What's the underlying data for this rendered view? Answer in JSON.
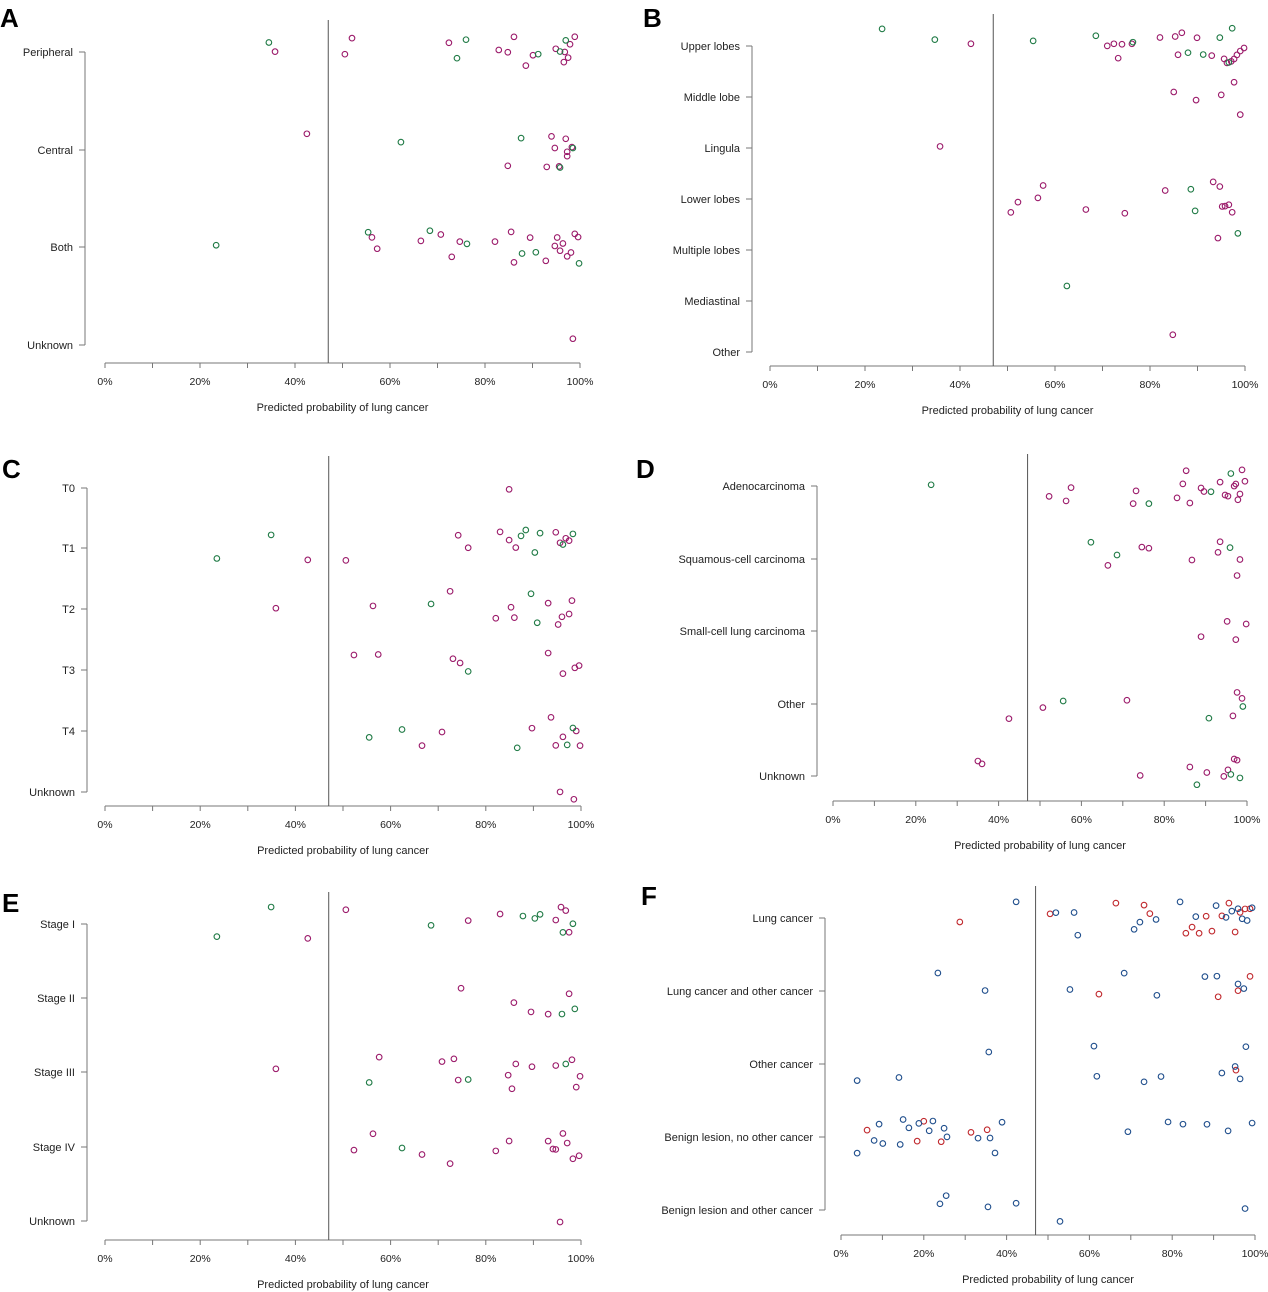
{
  "colors": {
    "magenta": "#9b1a6a",
    "green": "#1f7a45",
    "red": "#c0282d",
    "blue": "#1f4e8c",
    "threshold": "#555555",
    "axis": "#777777"
  },
  "chart_data": [
    {
      "panel": "A",
      "type": "scatter",
      "xlabel": "Predicted probability of lung cancer",
      "xlim": [
        0,
        100
      ],
      "x_tick_labels": [
        "0%",
        "20%",
        "40%",
        "60%",
        "80%",
        "100%"
      ],
      "threshold": 47,
      "categories": [
        {
          "label": "Peripheral",
          "magenta": [
            35.8,
            50.5,
            52,
            72.4,
            82.9,
            84.8,
            86.1,
            88.6,
            90.1,
            94.9,
            97.9,
            96.6,
            97.5,
            98.9,
            96.8
          ],
          "green": [
            34.5,
            74.1,
            76,
            91.2,
            95.8,
            97
          ]
        },
        {
          "label": "Central",
          "magenta": [
            42.5,
            84.8,
            93,
            94,
            94.7,
            95.6,
            97,
            98.3,
            97.3,
            97.3
          ],
          "green": [
            62.3,
            87.6,
            95.8,
            98.5
          ]
        },
        {
          "label": "Both",
          "magenta": [
            56.2,
            57.3,
            66.5,
            70.7,
            73,
            74.7,
            82.1,
            85.5,
            86.1,
            89.5,
            92.8,
            94.7,
            95.2,
            95.8,
            96.4,
            97.3,
            98.1,
            98.9,
            99.6
          ],
          "green": [
            23.4,
            55.4,
            68.4,
            76.2,
            87.8,
            90.7,
            99.8
          ]
        },
        {
          "label": "Unknown",
          "magenta": [
            98.5
          ],
          "green": []
        }
      ]
    },
    {
      "panel": "B",
      "type": "scatter",
      "xlabel": "Predicted probability of lung cancer",
      "xlim": [
        0,
        100
      ],
      "x_tick_labels": [
        "0%",
        "20%",
        "40%",
        "60%",
        "80%",
        "100%"
      ],
      "threshold": 47,
      "categories": [
        {
          "label": "Upper lobes",
          "magenta": [
            42.3,
            71,
            72.4,
            73.3,
            74.1,
            76.2,
            82.1,
            85.3,
            85.9,
            86.7,
            89.9,
            93,
            95.6,
            96.2,
            97.1,
            97.7,
            98.3,
            99,
            99.8
          ],
          "green": [
            23.6,
            34.7,
            55.4,
            68.6,
            76.4,
            88,
            91.2,
            94.7,
            96.6,
            97.3
          ]
        },
        {
          "label": "Middle lobe",
          "magenta": [
            85,
            89.7,
            95,
            97.7,
            99
          ],
          "green": []
        },
        {
          "label": "Lingula",
          "magenta": [
            35.8
          ],
          "green": []
        },
        {
          "label": "Lower lobes",
          "magenta": [
            50.7,
            52.2,
            56.4,
            57.5,
            66.5,
            74.7,
            83.2,
            93.3,
            94.7,
            95.2,
            95.8,
            96.6,
            97.3
          ],
          "green": [
            88.6,
            89.5
          ]
        },
        {
          "label": "Multiple lobes",
          "magenta": [
            94.3
          ],
          "green": [
            98.5
          ]
        },
        {
          "label": "Mediastinal",
          "magenta": [],
          "green": [
            62.5
          ]
        },
        {
          "label": "Other",
          "magenta": [
            84.8
          ],
          "green": []
        }
      ]
    },
    {
      "panel": "C",
      "type": "scatter",
      "xlabel": "Predicted probability of lung cancer",
      "xlim": [
        0,
        100
      ],
      "x_tick_labels": [
        "0%",
        "20%",
        "40%",
        "60%",
        "80%",
        "100%"
      ],
      "threshold": 47,
      "categories": [
        {
          "label": "T0",
          "magenta": [
            84.9
          ],
          "green": []
        },
        {
          "label": "T1",
          "magenta": [
            42.6,
            50.6,
            74.2,
            76.3,
            83,
            84.9,
            86.3,
            94.7,
            95.6,
            96.8,
            97.5
          ],
          "green": [
            23.5,
            34.9,
            87.4,
            88.4,
            90.3,
            91.4,
            96.2,
            98.3
          ]
        },
        {
          "label": "T2",
          "magenta": [
            35.9,
            56.3,
            72.5,
            82.1,
            85.3,
            86,
            93.1,
            95.2,
            96,
            97.5,
            98.1
          ],
          "green": [
            68.5,
            89.5,
            90.8
          ]
        },
        {
          "label": "T3",
          "magenta": [
            52.3,
            57.4,
            73.1,
            74.6,
            93.1,
            96.2,
            98.7,
            99.6
          ],
          "green": [
            76.3
          ]
        },
        {
          "label": "T4",
          "magenta": [
            66.6,
            70.8,
            89.7,
            93.7,
            94.7,
            96.2,
            99,
            99.8
          ],
          "green": [
            55.5,
            62.4,
            86.6,
            97.1,
            98.3
          ]
        },
        {
          "label": "Unknown",
          "magenta": [
            95.6,
            98.5
          ],
          "green": []
        }
      ]
    },
    {
      "panel": "D",
      "type": "scatter",
      "xlabel": "Predicted probability of lung cancer",
      "xlim": [
        0,
        100
      ],
      "x_tick_labels": [
        "0%",
        "20%",
        "40%",
        "60%",
        "80%",
        "100%"
      ],
      "threshold": 47,
      "categories": [
        {
          "label": "Adenocarcinoma",
          "magenta": [
            52.2,
            56.3,
            57.5,
            72.5,
            73.2,
            83.1,
            84.5,
            85.3,
            86.2,
            88.9,
            89.6,
            93.5,
            94.7,
            95.4,
            96.9,
            97.3,
            97.8,
            98.3,
            98.8,
            99.5
          ],
          "green": [
            23.7,
            76.3,
            91.3,
            96.1
          ]
        },
        {
          "label": "Squamous-cell carcinoma",
          "magenta": [
            66.4,
            74.6,
            76.3,
            86.7,
            93,
            93.5,
            97.6,
            98.3
          ],
          "green": [
            62.3,
            68.6,
            95.9
          ]
        },
        {
          "label": "Small-cell lung carcinoma",
          "magenta": [
            88.9,
            95.2,
            97.3,
            99.8
          ],
          "green": []
        },
        {
          "label": "Other",
          "magenta": [
            42.5,
            50.7,
            71,
            96.6,
            97.6,
            98.8
          ],
          "green": [
            55.6,
            90.8,
            99
          ]
        },
        {
          "label": "Unknown",
          "magenta": [
            35,
            36,
            74.2,
            86.2,
            90.3,
            94.4,
            95.4,
            96.9,
            97.6
          ],
          "green": [
            87.9,
            96.1,
            98.3
          ]
        }
      ]
    },
    {
      "panel": "E",
      "type": "scatter",
      "xlabel": "Predicted probability of lung cancer",
      "xlim": [
        0,
        100
      ],
      "x_tick_labels": [
        "0%",
        "20%",
        "40%",
        "60%",
        "80%",
        "100%"
      ],
      "threshold": 47,
      "categories": [
        {
          "label": "Stage I",
          "magenta": [
            42.6,
            50.6,
            76.3,
            83,
            94.7,
            95.8,
            96.8,
            97.5
          ],
          "green": [
            23.5,
            34.9,
            68.5,
            87.8,
            90.3,
            91.4,
            96.2,
            98.3
          ]
        },
        {
          "label": "Stage II",
          "magenta": [
            74.8,
            85.9,
            89.5,
            93.1,
            97.5
          ],
          "green": [
            96,
            98.7
          ]
        },
        {
          "label": "Stage III",
          "magenta": [
            35.9,
            57.6,
            70.8,
            73.3,
            74.2,
            84.7,
            85.5,
            86.3,
            89.7,
            94.7,
            98.1,
            99,
            99.8
          ],
          "green": [
            55.5,
            76.3,
            96.8
          ]
        },
        {
          "label": "Stage IV",
          "magenta": [
            52.3,
            56.3,
            66.6,
            72.5,
            82.1,
            84.9,
            93.1,
            94.1,
            94.7,
            96.2,
            97.1,
            98.3,
            99.6
          ],
          "green": [
            62.4
          ]
        },
        {
          "label": "Unknown",
          "magenta": [
            95.6
          ],
          "green": []
        }
      ]
    },
    {
      "panel": "F",
      "type": "scatter",
      "xlabel": "Predicted probability of lung cancer",
      "xlim": [
        0,
        100
      ],
      "x_tick_labels": [
        "0%",
        "20%",
        "40%",
        "60%",
        "80%",
        "100%"
      ],
      "threshold": 47,
      "categories": [
        {
          "label": "Lung cancer",
          "red": [
            28.7,
            50.5,
            66.4,
            73.2,
            74.6,
            83.3,
            84.8,
            86.5,
            88.2,
            89.6,
            92,
            93.7,
            95.2,
            96.4,
            97.6,
            98.8
          ],
          "blue": [
            42.3,
            51.9,
            56.3,
            57.2,
            70.8,
            72.2,
            76.1,
            81.9,
            85.7,
            90.6,
            93,
            94.4,
            95.9,
            96.9,
            98.1,
            99.3
          ]
        },
        {
          "label": "Lung cancer and other cancer",
          "red": [
            62.3,
            91.1,
            95.9,
            98.8
          ],
          "blue": [
            23.4,
            34.8,
            55.3,
            68.4,
            76.3,
            87.9,
            90.8,
            95.9,
            97.3
          ]
        },
        {
          "label": "Other cancer",
          "red": [
            95.4
          ],
          "blue": [
            3.9,
            14,
            35.7,
            61.1,
            61.8,
            73.2,
            77.3,
            92,
            95.2,
            96.4,
            97.8
          ]
        },
        {
          "label": "Benign lesion, no other cancer",
          "red": [
            6.3,
            18.4,
            20,
            24.2,
            31.4,
            35.3
          ],
          "blue": [
            3.9,
            8,
            9.2,
            10.1,
            14.3,
            15,
            16.4,
            18.8,
            21.3,
            22.2,
            24.9,
            25.6,
            33.1,
            36,
            37.2,
            38.9,
            69.3,
            79,
            82.6,
            88.4,
            93.5,
            99.3
          ]
        },
        {
          "label": "Benign lesion and other cancer",
          "red": [],
          "blue": [
            23.9,
            25.4,
            35.5,
            42.3,
            52.9,
            97.6
          ]
        }
      ]
    }
  ]
}
